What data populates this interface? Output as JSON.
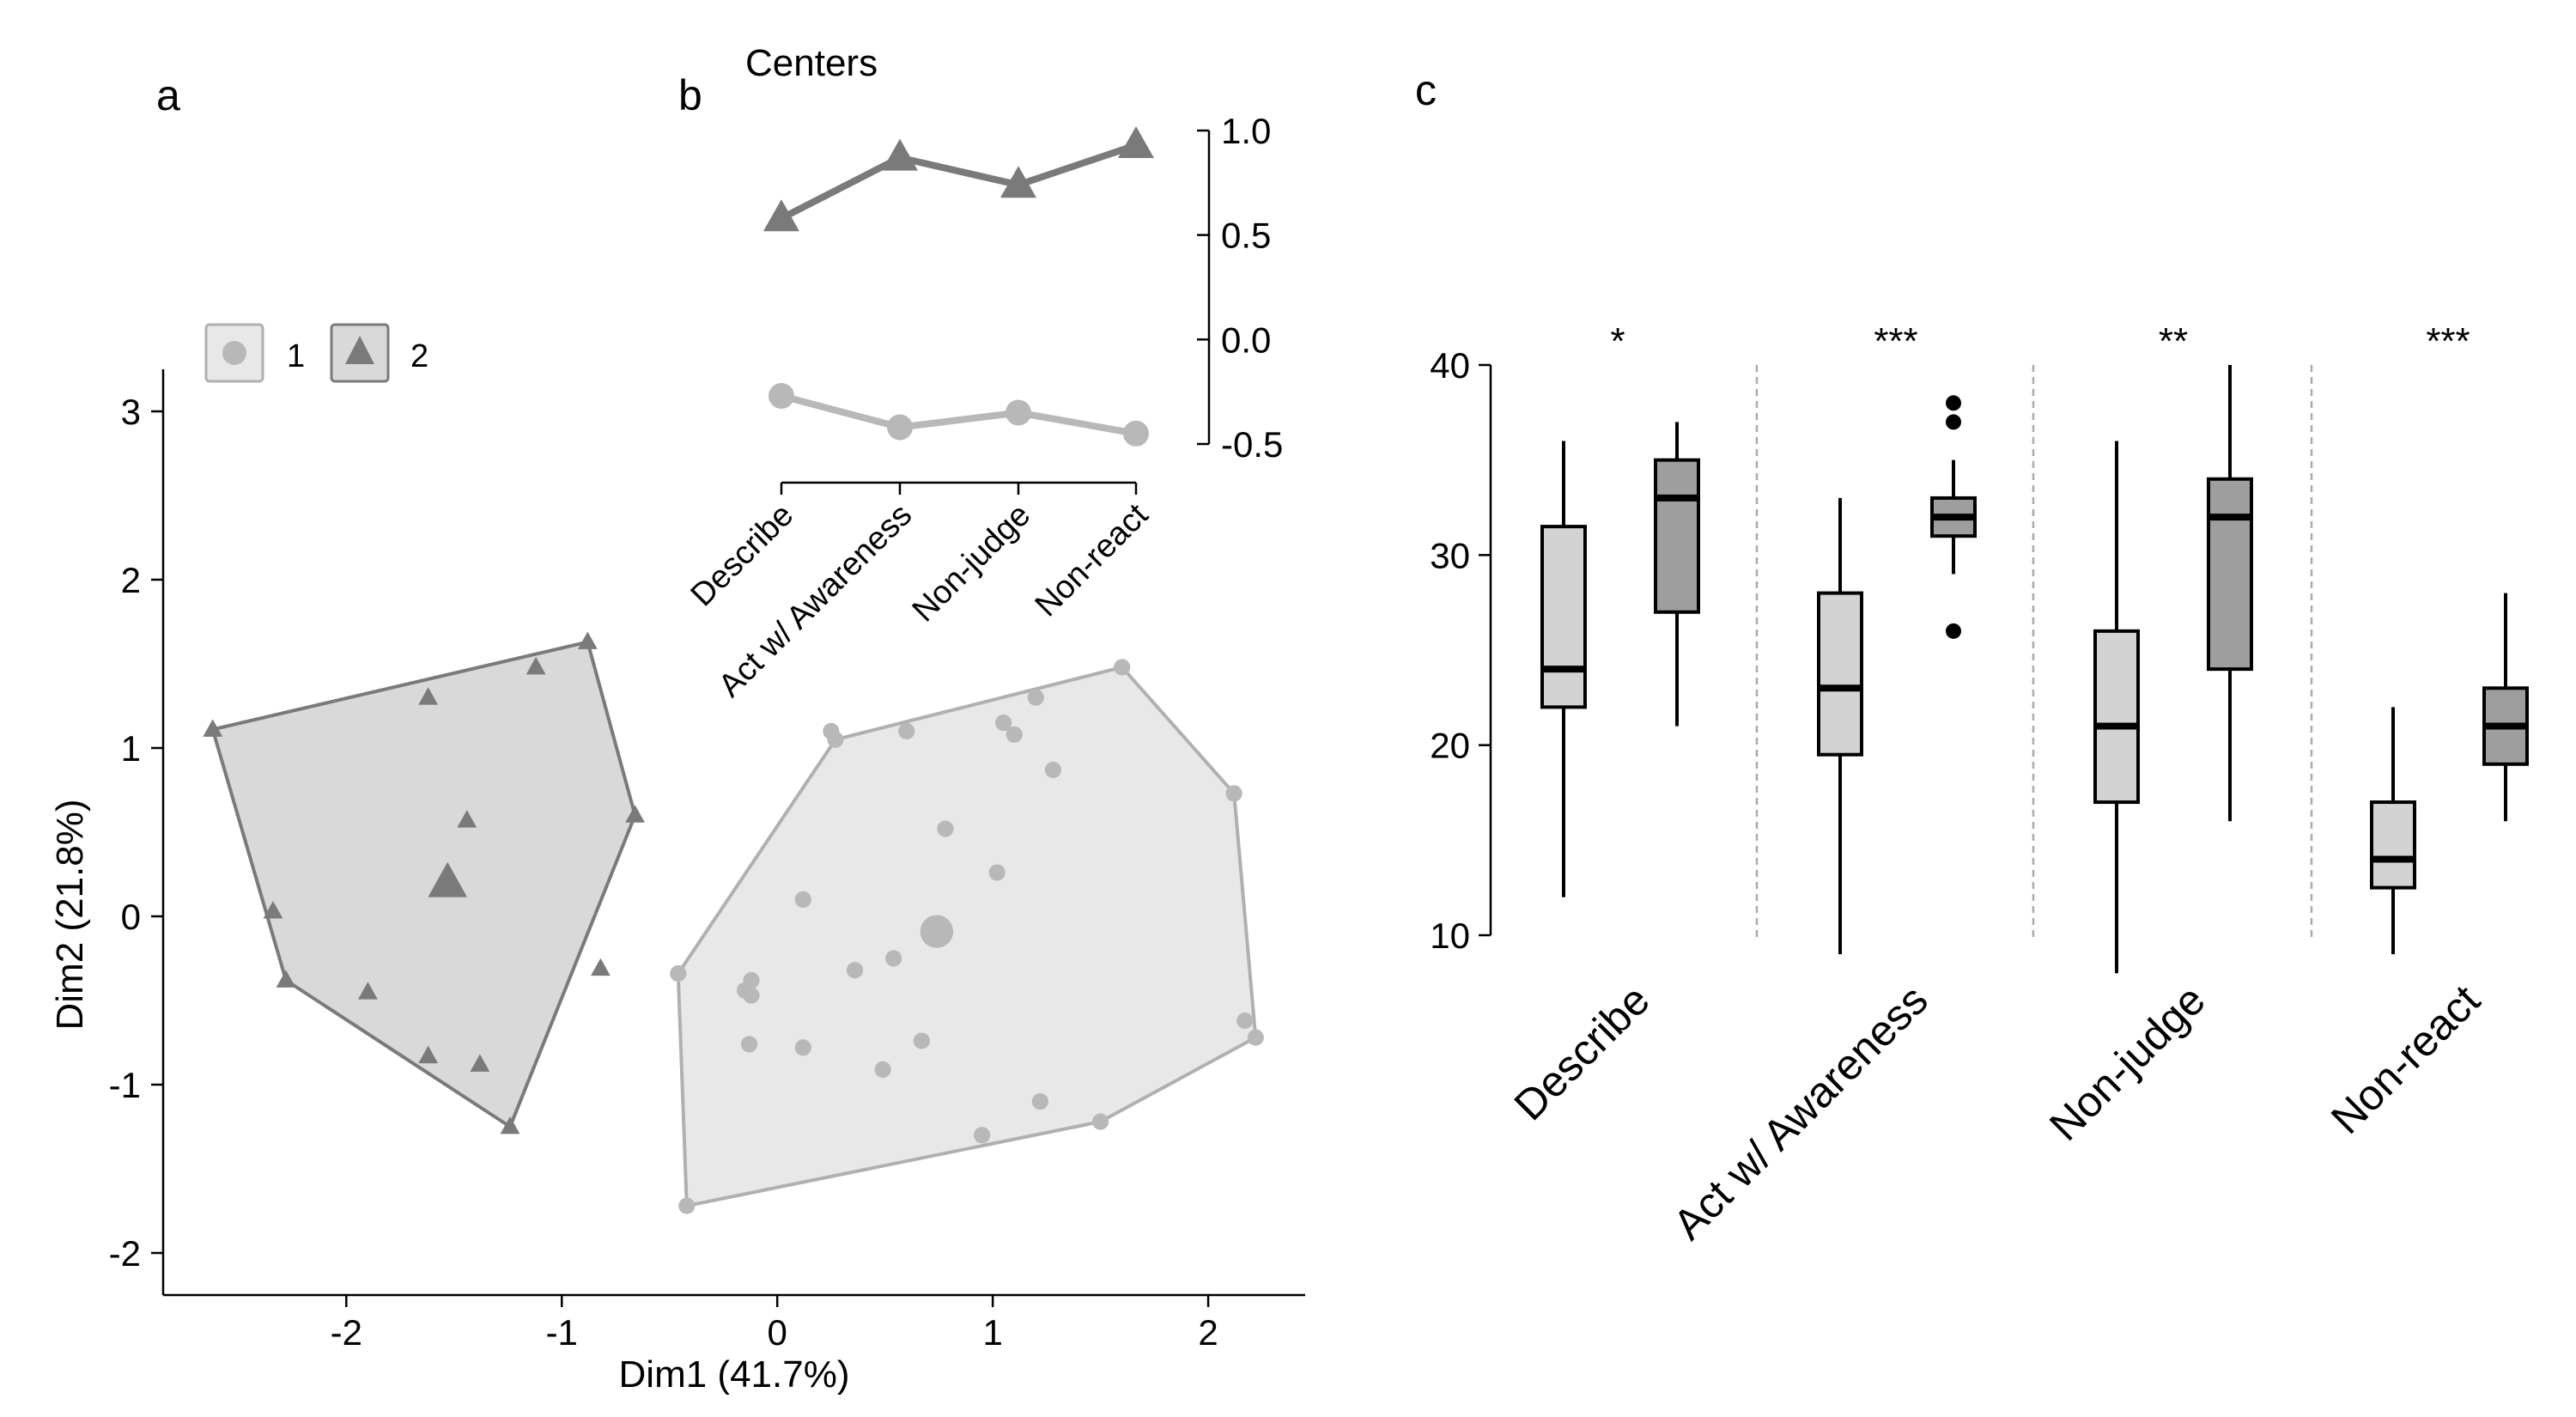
{
  "panel_labels": {
    "a": "a",
    "b": "b",
    "c": "c"
  },
  "colors": {
    "cluster1_fill": "#e8e8e8",
    "cluster1_stroke": "#b0b0b0",
    "cluster1_point": "#b8b8b8",
    "cluster2_fill": "#d9d9d9",
    "cluster2_stroke": "#7a7a7a",
    "cluster2_point": "#7a7a7a",
    "box1_fill": "#d3d3d3",
    "box2_fill": "#9e9e9e",
    "divider": "#aaaaaa"
  },
  "chart_data": [
    {
      "type": "scatter",
      "xlabel": "Dim1 (41.7%)",
      "ylabel": "Dim2 (21.8%)",
      "xlim": [
        -2.85,
        2.45
      ],
      "ylim": [
        -2.25,
        3.25
      ],
      "xticks": [
        -2,
        -1,
        0,
        1,
        2
      ],
      "yticks": [
        -2,
        -1,
        0,
        1,
        2,
        3
      ],
      "grid": false,
      "legend": {
        "placement": "top-left",
        "entries": [
          {
            "label": "1",
            "marker": "circle"
          },
          {
            "label": "2",
            "marker": "triangle"
          }
        ]
      },
      "series": [
        {
          "name": "1",
          "marker": "circle",
          "points": [
            [
              0.25,
              1.1
            ],
            [
              0.6,
              1.1
            ],
            [
              1.05,
              1.15
            ],
            [
              1.1,
              1.08
            ],
            [
              1.2,
              1.3
            ],
            [
              1.28,
              0.87
            ],
            [
              0.78,
              0.52
            ],
            [
              1.02,
              0.26
            ],
            [
              0.12,
              0.1
            ],
            [
              0.54,
              -0.25
            ],
            [
              0.36,
              -0.32
            ],
            [
              -0.12,
              -0.38
            ],
            [
              -0.15,
              -0.44
            ],
            [
              -0.12,
              -0.47
            ],
            [
              -0.13,
              -0.76
            ],
            [
              0.12,
              -0.78
            ],
            [
              0.67,
              -0.74
            ],
            [
              0.49,
              -0.91
            ],
            [
              1.22,
              -1.1
            ],
            [
              0.95,
              -1.3
            ],
            [
              2.17,
              -0.62
            ]
          ],
          "hull": [
            [
              0.27,
              1.05
            ],
            [
              1.6,
              1.48
            ],
            [
              2.12,
              0.73
            ],
            [
              2.22,
              -0.72
            ],
            [
              1.5,
              -1.22
            ],
            [
              -0.42,
              -1.72
            ],
            [
              -0.46,
              -0.34
            ]
          ],
          "center": [
            0.74,
            -0.09
          ]
        },
        {
          "name": "2",
          "marker": "triangle",
          "points": [
            [
              -1.62,
              1.3
            ],
            [
              -1.12,
              1.48
            ],
            [
              -1.44,
              0.57
            ],
            [
              -2.34,
              0.03
            ],
            [
              -1.9,
              -0.45
            ],
            [
              -0.82,
              -0.31
            ],
            [
              -1.62,
              -0.83
            ],
            [
              -1.38,
              -0.88
            ]
          ],
          "hull": [
            [
              -2.62,
              1.11
            ],
            [
              -0.88,
              1.63
            ],
            [
              -0.66,
              0.6
            ],
            [
              -1.24,
              -1.25
            ],
            [
              -2.28,
              -0.38
            ]
          ],
          "center": [
            -1.53,
            0.2
          ]
        }
      ]
    },
    {
      "type": "line",
      "title": "Centers",
      "categories": [
        "Describe",
        "Act w/ Awareness",
        "Non-judge",
        "Non-react"
      ],
      "ylim": [
        -0.5,
        1.0
      ],
      "yticks": [
        -0.5,
        0.0,
        0.5,
        1.0
      ],
      "ytick_labels": [
        "-0.5",
        "0.0",
        "0.5",
        "1.0"
      ],
      "y_axis_side": "right",
      "series": [
        {
          "name": "1",
          "marker": "circle",
          "values": [
            -0.27,
            -0.42,
            -0.35,
            -0.45
          ]
        },
        {
          "name": "2",
          "marker": "triangle",
          "values": [
            0.58,
            0.87,
            0.74,
            0.93
          ]
        }
      ]
    },
    {
      "type": "box",
      "categories": [
        "Describe",
        "Act w/ Awareness",
        "Non-judge",
        "Non-react"
      ],
      "ylim": [
        10,
        40
      ],
      "yticks": [
        10,
        20,
        30,
        40
      ],
      "significance": [
        "*",
        "***",
        "**",
        "***"
      ],
      "groups": [
        {
          "category": "Describe",
          "boxes": [
            {
              "cluster": "1",
              "whisker_low": 12,
              "q1": 22,
              "median": 24,
              "q3": 31.5,
              "whisker_high": 36,
              "outliers": []
            },
            {
              "cluster": "2",
              "whisker_low": 21,
              "q1": 27,
              "median": 33,
              "q3": 35,
              "whisker_high": 37,
              "outliers": []
            }
          ]
        },
        {
          "category": "Act w/ Awareness",
          "boxes": [
            {
              "cluster": "1",
              "whisker_low": 9,
              "q1": 19.5,
              "median": 23,
              "q3": 28,
              "whisker_high": 33,
              "outliers": []
            },
            {
              "cluster": "2",
              "whisker_low": 29,
              "q1": 31,
              "median": 32,
              "q3": 33,
              "whisker_high": 35,
              "outliers": [
                26,
                37,
                38
              ]
            }
          ]
        },
        {
          "category": "Non-judge",
          "boxes": [
            {
              "cluster": "1",
              "whisker_low": 8,
              "q1": 17,
              "median": 21,
              "q3": 26,
              "whisker_high": 36,
              "outliers": []
            },
            {
              "cluster": "2",
              "whisker_low": 16,
              "q1": 24,
              "median": 32,
              "q3": 34,
              "whisker_high": 40,
              "outliers": []
            }
          ]
        },
        {
          "category": "Non-react",
          "boxes": [
            {
              "cluster": "1",
              "whisker_low": 9,
              "q1": 12.5,
              "median": 14,
              "q3": 17,
              "whisker_high": 22,
              "outliers": []
            },
            {
              "cluster": "2",
              "whisker_low": 16,
              "q1": 19,
              "median": 21,
              "q3": 23,
              "whisker_high": 28,
              "outliers": []
            }
          ]
        }
      ]
    }
  ]
}
